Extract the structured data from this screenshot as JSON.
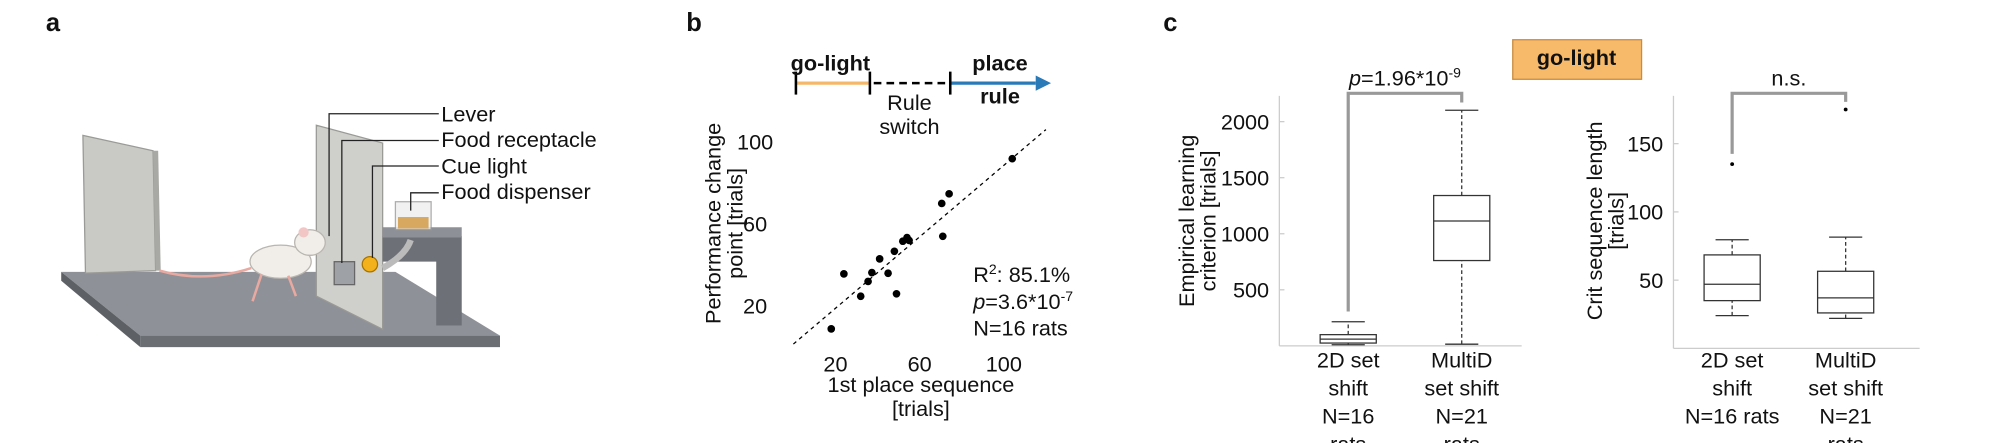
{
  "panel_labels": [
    "a",
    "b",
    "c"
  ],
  "illustration": {
    "labels": [
      "Lever",
      "Food receptacle",
      "Cue light",
      "Food dispenser"
    ]
  },
  "condition": "go-light",
  "chart_data": [
    {
      "type": "scatter",
      "phases": {
        "start": "go-light",
        "switch": [
          "Rule",
          "switch"
        ],
        "end": [
          "place",
          "rule"
        ],
        "start_color": "#f5b86b",
        "end_color": "#2a7ab8"
      },
      "ylabel": [
        "Performance change",
        "point [trials]"
      ],
      "xlabel": [
        "1st place sequence",
        "[trials]"
      ],
      "x": [
        18,
        24,
        32,
        35.5,
        37.3,
        41,
        45,
        48,
        49,
        52,
        54,
        55,
        71,
        70.5,
        74,
        104
      ],
      "y": [
        8.9,
        35.7,
        24.8,
        32,
        36.3,
        43,
        36,
        46.7,
        26,
        51.6,
        53.4,
        52,
        54,
        70,
        74.7,
        91.8
      ],
      "color": "#000000",
      "xlim": [
        0,
        120
      ],
      "ylim": [
        0,
        110
      ],
      "xticks": [
        20,
        60,
        100
      ],
      "yticks": [
        20,
        60,
        100
      ],
      "fit_line": {
        "x": [
          0,
          120
        ],
        "y": [
          1.5,
          106
        ]
      },
      "annotations": [
        [
          {
            "text": "R"
          },
          {
            "text": "2",
            "sup": true
          },
          {
            "text": ": 85.1%"
          }
        ],
        [
          {
            "text": "p",
            "italic": true
          },
          {
            "text": "=3.6*10"
          },
          {
            "text": "-7",
            "sup": true
          }
        ],
        [
          {
            "text": "N=16 rats"
          }
        ]
      ]
    },
    {
      "type": "box",
      "ylabel": [
        "Empirical learning",
        "criterion [trials]"
      ],
      "categories": [
        [
          "2D set",
          "shift",
          "N=16",
          "rats"
        ],
        [
          "MultiD",
          "set shift",
          "N=21",
          "rats"
        ]
      ],
      "boxes": [
        {
          "min": 10,
          "q1": 25,
          "median": 60,
          "q3": 100,
          "max": 215,
          "outliers": []
        },
        {
          "min": 15,
          "q1": 761,
          "median": 1114,
          "q3": 1341,
          "max": 2102,
          "outliers": []
        }
      ],
      "ylim": [
        0,
        2230
      ],
      "yticks": [
        500,
        1000,
        1500,
        2000
      ],
      "significance": [
        {
          "text": "p",
          "italic": true
        },
        {
          "text": "=1.96*10"
        },
        {
          "text": "-9",
          "sup": true
        }
      ]
    },
    {
      "type": "box",
      "ylabel": [
        "Crit sequence length",
        "[trials]"
      ],
      "categories": [
        [
          "2D set",
          "shift",
          "N=16 rats"
        ],
        [
          "MultiD",
          "set shift",
          "N=21",
          "rats"
        ]
      ],
      "boxes": [
        {
          "min": 24,
          "q1": 35,
          "median": 47,
          "q3": 68.5,
          "max": 79.6,
          "outliers": [
            135
          ]
        },
        {
          "min": 22,
          "q1": 26,
          "median": 37,
          "q3": 56.5,
          "max": 81.5,
          "outliers": [
            175
          ]
        }
      ],
      "ylim": [
        0,
        185
      ],
      "yticks": [
        50,
        100,
        150
      ],
      "significance": [
        {
          "text": "n.s."
        }
      ]
    }
  ]
}
